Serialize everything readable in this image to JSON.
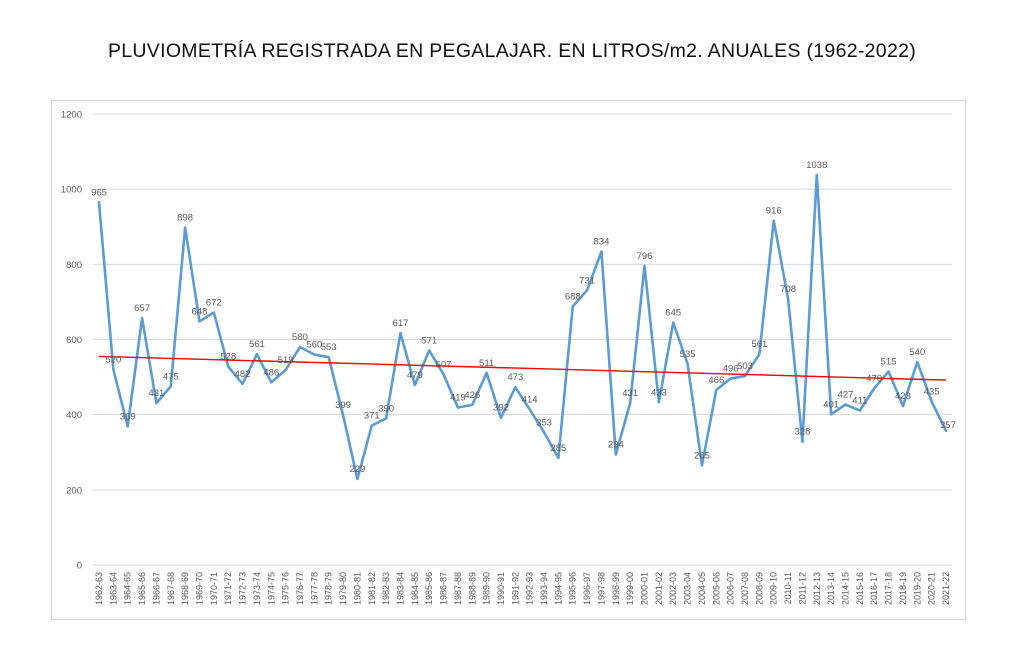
{
  "title": "PLUVIOMETRÍA REGISTRADA EN PEGALAJAR. EN LITROS/m2. ANUALES (1962-2022)",
  "colors": {
    "series": "#5b9bd5",
    "trend": "#ff0000",
    "grid": "#d9d9d9",
    "text": "#595959"
  },
  "chart_data": {
    "type": "line",
    "title": "PLUVIOMETRÍA REGISTRADA EN PEGALAJAR. EN LITROS/m2. ANUALES (1962-2022)",
    "xlabel": "",
    "ylabel": "",
    "ylim": [
      0,
      1200
    ],
    "yticks": [
      0,
      200,
      400,
      600,
      800,
      1000,
      1200
    ],
    "grid": true,
    "legend": "none",
    "categories": [
      "1962-63",
      "1963-64",
      "1964-65",
      "1965-66",
      "1966-67",
      "1967-68",
      "1968-69",
      "1969-70",
      "1970-71",
      "1971-72",
      "1972-73",
      "1973-74",
      "1974-75",
      "1975-76",
      "1976-77",
      "1977-78",
      "1978-79",
      "1979-80",
      "1980-81",
      "1981-82",
      "1982-83",
      "1983-84",
      "1984-85",
      "1985-86",
      "1986-87",
      "1987-88",
      "1988-89",
      "1989-90",
      "1990-91",
      "1991-92",
      "1992-93",
      "1993-94",
      "1994-95",
      "1995-96",
      "1996-97",
      "1997-98",
      "1998-99",
      "1999-00",
      "2000-01",
      "2001-02",
      "2002-03",
      "2003-04",
      "2004-05",
      "2005-06",
      "2006-07",
      "2007-08",
      "2008-09",
      "2009-10",
      "2010-11",
      "2011-12",
      "2012-13",
      "2013-14",
      "2014-15",
      "2015-16",
      "2016-17",
      "2017-18",
      "2018-19",
      "2019-20",
      "2020-21",
      "2021-22"
    ],
    "values": [
      965,
      520,
      369,
      657,
      431,
      475,
      898,
      648,
      672,
      528,
      482,
      561,
      486,
      519,
      580,
      560,
      553,
      399,
      229,
      371,
      390,
      617,
      479,
      571,
      507,
      419,
      426,
      511,
      392,
      473,
      414,
      353,
      285,
      688,
      731,
      834,
      294,
      431,
      796,
      433,
      645,
      535,
      265,
      466,
      496,
      503,
      561,
      916,
      708,
      328,
      1038,
      401,
      427,
      411,
      470,
      515,
      423,
      540,
      435,
      357
    ],
    "trendline": {
      "type": "linear",
      "start": 555,
      "end": 492
    }
  }
}
